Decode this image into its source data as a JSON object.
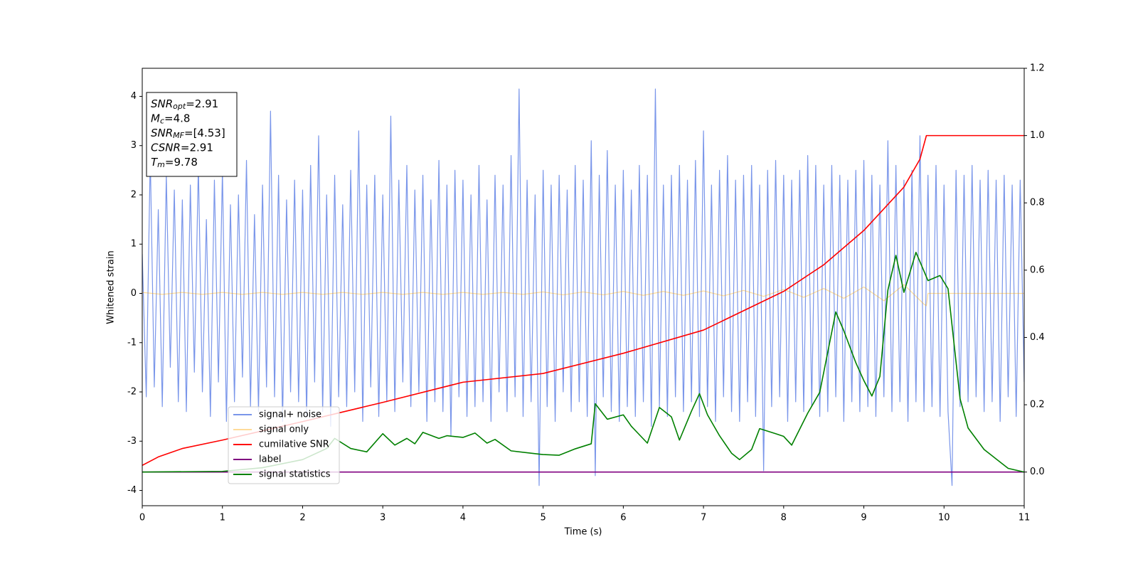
{
  "chart_data": {
    "type": "line",
    "xlabel": "Time (s)",
    "ylabel": "Whitened strain",
    "xlim": [
      0,
      11
    ],
    "ylim": [
      -4.31,
      4.57
    ],
    "y2lim": [
      -0.1,
      1.2
    ],
    "xticks": [
      0,
      1,
      2,
      3,
      4,
      5,
      6,
      7,
      8,
      9,
      10,
      11
    ],
    "yticks": [
      -4,
      -3,
      -2,
      -1,
      0,
      1,
      2,
      3,
      4
    ],
    "y2ticks": [
      {
        "value": 0,
        "label": "0.0"
      },
      0.2,
      0.4,
      0.6,
      0.8,
      {
        "value": 1,
        "label": "1.0"
      },
      1.2
    ],
    "legend": "lower left",
    "annotations": [
      {
        "label": "SNR",
        "sub": "opt",
        "text": "=2.91"
      },
      {
        "label": "M",
        "sub": "c",
        "text": "=4.8"
      },
      {
        "label": "SNR",
        "sub": "MF",
        "text": "=[4.53]"
      },
      {
        "label": "CSNR",
        "text": "=2.91"
      },
      {
        "label": "T",
        "sub": "m",
        "text": "=9.78"
      }
    ],
    "series": [
      {
        "name": "signal+ noise",
        "color": "#4169e1",
        "x": [
          0,
          0.05,
          0.1,
          0.15,
          0.2,
          0.25,
          0.3,
          0.35,
          0.4,
          0.45,
          0.5,
          0.55,
          0.6,
          0.65,
          0.7,
          0.75,
          0.8,
          0.85,
          0.9,
          0.95,
          1,
          1.05,
          1.1,
          1.15,
          1.2,
          1.25,
          1.3,
          1.35,
          1.4,
          1.45,
          1.5,
          1.55,
          1.6,
          1.65,
          1.7,
          1.75,
          1.8,
          1.85,
          1.9,
          1.95,
          2,
          2.05,
          2.1,
          2.15,
          2.2,
          2.25,
          2.3,
          2.35,
          2.4,
          2.45,
          2.5,
          2.55,
          2.6,
          2.65,
          2.7,
          2.75,
          2.8,
          2.85,
          2.9,
          2.95,
          3,
          3.05,
          3.1,
          3.15,
          3.2,
          3.25,
          3.3,
          3.35,
          3.4,
          3.45,
          3.5,
          3.55,
          3.6,
          3.65,
          3.7,
          3.75,
          3.8,
          3.85,
          3.9,
          3.95,
          4,
          4.05,
          4.1,
          4.15,
          4.2,
          4.25,
          4.3,
          4.35,
          4.4,
          4.45,
          4.5,
          4.55,
          4.6,
          4.65,
          4.7,
          4.75,
          4.8,
          4.85,
          4.9,
          4.95,
          5,
          5.05,
          5.1,
          5.15,
          5.2,
          5.25,
          5.3,
          5.35,
          5.4,
          5.45,
          5.5,
          5.55,
          5.6,
          5.65,
          5.7,
          5.75,
          5.8,
          5.85,
          5.9,
          5.95,
          6,
          6.05,
          6.1,
          6.15,
          6.2,
          6.25,
          6.3,
          6.35,
          6.4,
          6.45,
          6.5,
          6.55,
          6.6,
          6.65,
          6.7,
          6.75,
          6.8,
          6.85,
          6.9,
          6.95,
          7,
          7.05,
          7.1,
          7.15,
          7.2,
          7.25,
          7.3,
          7.35,
          7.4,
          7.45,
          7.5,
          7.55,
          7.6,
          7.65,
          7.7,
          7.75,
          7.8,
          7.85,
          7.9,
          7.95,
          8,
          8.05,
          8.1,
          8.15,
          8.2,
          8.25,
          8.3,
          8.35,
          8.4,
          8.45,
          8.5,
          8.55,
          8.6,
          8.65,
          8.7,
          8.75,
          8.8,
          8.85,
          8.9,
          8.95,
          9,
          9.05,
          9.1,
          9.15,
          9.2,
          9.25,
          9.3,
          9.35,
          9.4,
          9.45,
          9.5,
          9.55,
          9.6,
          9.65,
          9.7,
          9.75,
          9.8,
          9.85,
          9.9,
          9.95,
          10,
          10.05,
          10.1,
          10.15,
          10.2,
          10.25,
          10.3,
          10.35,
          10.4,
          10.45,
          10.5,
          10.55,
          10.6,
          10.65,
          10.7,
          10.75,
          10.8,
          10.85,
          10.9,
          10.95,
          11
        ],
        "values": [
          0.8,
          -2.1,
          2.8,
          -1.9,
          1.7,
          -2.3,
          2.4,
          -1.5,
          2.1,
          -2.2,
          1.9,
          -2.4,
          2.2,
          -1.6,
          2.6,
          -2.0,
          1.5,
          -2.5,
          2.3,
          -1.8,
          2.5,
          -2.6,
          1.8,
          -2.2,
          2.0,
          -1.7,
          2.7,
          -2.3,
          1.6,
          -2.4,
          2.2,
          -1.9,
          3.7,
          -2.1,
          2.4,
          -2.6,
          1.9,
          -2.0,
          2.3,
          -2.2,
          2.1,
          -2.5,
          2.6,
          -1.8,
          3.2,
          -2.4,
          2.0,
          -2.7,
          2.4,
          -2.1,
          1.8,
          -2.3,
          2.5,
          -2.0,
          3.3,
          -2.6,
          2.2,
          -1.9,
          2.4,
          -2.5,
          2.0,
          -2.2,
          3.6,
          -2.4,
          2.3,
          -1.8,
          2.6,
          -2.3,
          2.1,
          -2.0,
          2.4,
          -2.6,
          1.9,
          -2.2,
          2.7,
          -2.4,
          2.2,
          -2.9,
          2.5,
          -2.1,
          2.3,
          -2.5,
          2.0,
          -2.3,
          2.6,
          -2.2,
          1.9,
          -2.6,
          2.4,
          -2.0,
          2.2,
          -2.4,
          2.8,
          -2.1,
          4.15,
          -2.5,
          2.3,
          -2.2,
          2.0,
          -3.9,
          2.5,
          -2.3,
          2.2,
          -2.6,
          2.4,
          -2.0,
          2.1,
          -2.4,
          2.6,
          -2.2,
          2.3,
          -2.5,
          3.1,
          -3.7,
          2.4,
          -2.1,
          2.9,
          -2.4,
          2.2,
          -2.6,
          2.5,
          -2.3,
          2.1,
          -2.5,
          2.6,
          -2.2,
          2.4,
          -2.7,
          4.15,
          -2.3,
          2.2,
          -2.5,
          2.4,
          -2.1,
          2.6,
          -2.4,
          2.3,
          -2.2,
          2.7,
          -2.5,
          3.3,
          -2.3,
          2.2,
          -2.6,
          2.5,
          -2.1,
          2.8,
          -2.4,
          2.3,
          -2.6,
          2.4,
          -2.2,
          2.6,
          -2.5,
          2.2,
          -3.6,
          2.5,
          -2.3,
          2.7,
          -2.1,
          2.4,
          -2.6,
          2.3,
          -2.2,
          2.5,
          -2.4,
          2.8,
          -2.3,
          2.6,
          -2.5,
          2.2,
          -2.4,
          2.6,
          -2.1,
          2.4,
          -2.6,
          2.3,
          -2.2,
          2.5,
          -2.4,
          2.7,
          -2.3,
          2.4,
          -2.5,
          2.2,
          -2.1,
          3.1,
          -2.4,
          2.6,
          -2.2,
          2.3,
          -2.6,
          2.5,
          -2.2,
          3.2,
          -2.4,
          2.4,
          -2.3,
          2.6,
          -2.5,
          2.2,
          -2.4,
          -3.9,
          2.5,
          -2.3,
          2.4,
          -2.2,
          2.6,
          -2.1,
          2.3,
          -2.4,
          2.5,
          -2.2,
          2.3,
          -2.6,
          2.4,
          -2.1,
          2.2,
          -2.5,
          2.3,
          -1.8
        ]
      },
      {
        "name": "signal only",
        "color": "#ffa500",
        "x": [
          0,
          0.25,
          0.5,
          0.75,
          1,
          1.25,
          1.5,
          1.75,
          2,
          2.25,
          2.5,
          2.75,
          3,
          3.25,
          3.5,
          3.75,
          4,
          4.25,
          4.5,
          4.75,
          5,
          5.25,
          5.5,
          5.75,
          6,
          6.25,
          6.5,
          6.75,
          7,
          7.25,
          7.5,
          7.75,
          8,
          8.25,
          8.5,
          8.75,
          9,
          9.25,
          9.5,
          9.75,
          9.78,
          9.8,
          11
        ],
        "values": [
          0.02,
          -0.02,
          0.02,
          -0.02,
          0.02,
          -0.02,
          0.02,
          -0.02,
          0.02,
          -0.02,
          0.02,
          -0.02,
          0.02,
          -0.02,
          0.02,
          -0.02,
          0.02,
          -0.02,
          0.02,
          -0.02,
          0.03,
          -0.03,
          0.03,
          -0.03,
          0.04,
          -0.04,
          0.04,
          -0.04,
          0.05,
          -0.05,
          0.06,
          -0.06,
          0.08,
          -0.08,
          0.1,
          -0.1,
          0.13,
          -0.15,
          0.18,
          -0.22,
          -0.25,
          0,
          0
        ]
      },
      {
        "name": "cumilative SNR",
        "color": "#ff0000",
        "axis": "y2",
        "x": [
          0,
          0.2,
          0.5,
          1,
          2,
          3,
          4,
          5,
          6,
          7,
          8,
          8.5,
          9,
          9.5,
          9.7,
          9.78,
          11
        ],
        "values": [
          0.02,
          0.045,
          0.07,
          0.095,
          0.15,
          0.207,
          0.267,
          0.293,
          0.353,
          0.422,
          0.537,
          0.616,
          0.718,
          0.847,
          0.93,
          1,
          1
        ]
      },
      {
        "name": "label",
        "color": "#800080",
        "axis": "y2",
        "x": [
          0,
          11
        ],
        "values": [
          0,
          0
        ]
      },
      {
        "name": "signal statistics",
        "color": "#008000",
        "axis": "y2",
        "x": [
          0,
          1,
          1.5,
          2,
          2.3,
          2.4,
          2.6,
          2.8,
          3,
          3.15,
          3.3,
          3.4,
          3.5,
          3.7,
          3.8,
          4,
          4.15,
          4.3,
          4.4,
          4.6,
          4.85,
          5,
          5.2,
          5.4,
          5.6,
          5.65,
          5.8,
          6,
          6.1,
          6.3,
          6.45,
          6.6,
          6.7,
          6.85,
          6.95,
          7.05,
          7.2,
          7.35,
          7.45,
          7.6,
          7.7,
          7.9,
          8,
          8.1,
          8.3,
          8.45,
          8.65,
          8.75,
          8.9,
          9,
          9.1,
          9.2,
          9.3,
          9.4,
          9.5,
          9.65,
          9.8,
          9.95,
          10.05,
          10.2,
          10.3,
          10.5,
          10.8,
          11
        ],
        "values": [
          0,
          0.002,
          0.013,
          0.037,
          0.07,
          0.1,
          0.07,
          0.06,
          0.114,
          0.08,
          0.1,
          0.084,
          0.118,
          0.1,
          0.108,
          0.103,
          0.116,
          0.086,
          0.097,
          0.063,
          0.056,
          0.052,
          0.05,
          0.069,
          0.084,
          0.203,
          0.157,
          0.17,
          0.136,
          0.086,
          0.192,
          0.164,
          0.095,
          0.181,
          0.233,
          0.17,
          0.108,
          0.056,
          0.037,
          0.067,
          0.129,
          0.114,
          0.106,
          0.08,
          0.175,
          0.237,
          0.476,
          0.42,
          0.325,
          0.272,
          0.226,
          0.284,
          0.541,
          0.644,
          0.534,
          0.653,
          0.569,
          0.584,
          0.545,
          0.218,
          0.131,
          0.067,
          0.011,
          0
        ]
      }
    ]
  }
}
